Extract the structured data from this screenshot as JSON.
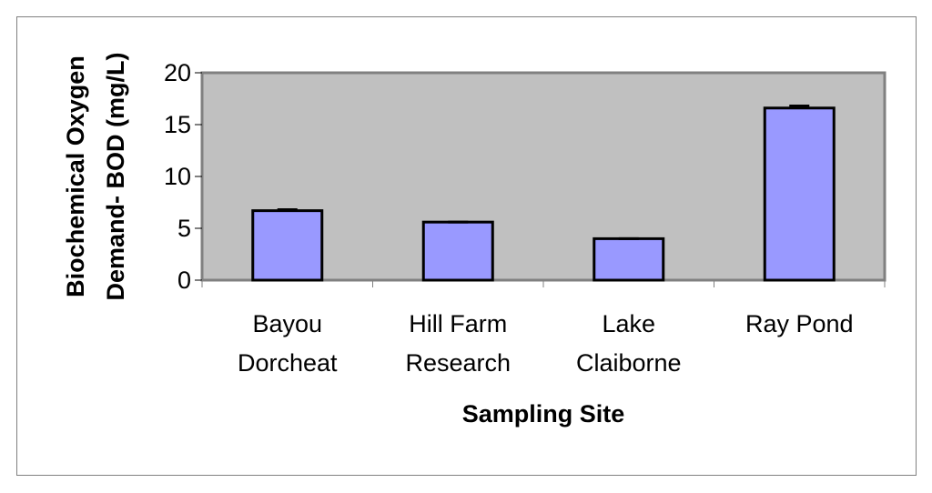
{
  "chart_data": {
    "type": "bar",
    "y_label": "Biochemical Oxygen Demand- BOD (mg/L)",
    "x_label": "Sampling Site",
    "categories": [
      "Bayou Dorcheat",
      "Hill Farm Research",
      "Lake Claiborne",
      "Ray Pond"
    ],
    "values": [
      6.7,
      5.6,
      4.0,
      16.6
    ],
    "errors": [
      0.1,
      0,
      0,
      0.2
    ],
    "color": "#9999ff",
    "plot_background": "#c0c0c0",
    "ylim": [
      0,
      20
    ],
    "yticks": [
      0,
      5,
      10,
      15,
      20
    ],
    "grid": false
  }
}
